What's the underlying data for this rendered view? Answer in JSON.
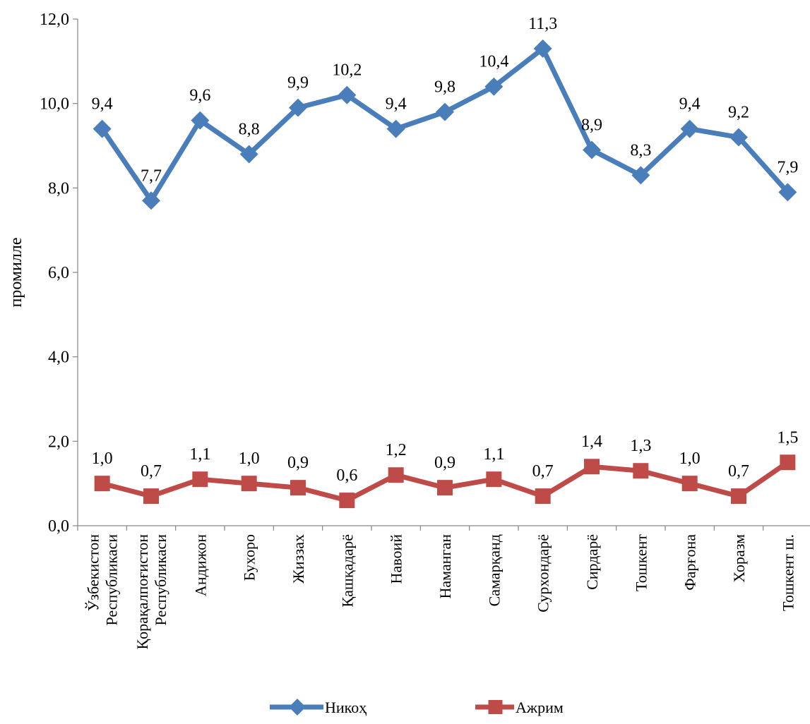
{
  "chart_data": {
    "type": "line",
    "title": "",
    "xlabel": "",
    "ylabel": "промилле",
    "ylim": [
      0,
      12
    ],
    "yticks": [
      0,
      2,
      4,
      6,
      8,
      10,
      12
    ],
    "ytick_labels": [
      "0,0",
      "2,0",
      "4,0",
      "6,0",
      "8,0",
      "10,0",
      "12,0"
    ],
    "grid": false,
    "legend_position": "bottom",
    "categories": [
      [
        "Ўзбекистон",
        "Республикаси"
      ],
      [
        "Қорақалпоғистон",
        "Республикаси"
      ],
      [
        "Андижон"
      ],
      [
        "Бухоро"
      ],
      [
        "Жиззах"
      ],
      [
        "Қашқадарё"
      ],
      [
        "Навоий"
      ],
      [
        "Наманган"
      ],
      [
        "Самарқанд"
      ],
      [
        "Сурхондарё"
      ],
      [
        "Сирдарё"
      ],
      [
        "Тошкент"
      ],
      [
        "Фарғона"
      ],
      [
        "Хоразм"
      ],
      [
        "Тошкент ш."
      ]
    ],
    "series": [
      {
        "name": "Никоҳ",
        "color": "#4a7ebb",
        "marker": "diamond",
        "values": [
          9.4,
          7.7,
          9.6,
          8.8,
          9.9,
          10.2,
          9.4,
          9.8,
          10.4,
          11.3,
          8.9,
          8.3,
          9.4,
          9.2,
          7.9
        ],
        "labels": [
          "9,4",
          "7,7",
          "9,6",
          "8,8",
          "9,9",
          "10,2",
          "9,4",
          "9,8",
          "10,4",
          "11,3",
          "8,9",
          "8,3",
          "9,4",
          "9,2",
          "7,9"
        ]
      },
      {
        "name": "Ажрим",
        "color": "#be4b48",
        "marker": "square",
        "values": [
          1.0,
          0.7,
          1.1,
          1.0,
          0.9,
          0.6,
          1.2,
          0.9,
          1.1,
          0.7,
          1.4,
          1.3,
          1.0,
          0.7,
          1.5
        ],
        "labels": [
          "1,0",
          "0,7",
          "1,1",
          "1,0",
          "0,9",
          "0,6",
          "1,2",
          "0,9",
          "1,1",
          "0,7",
          "1,4",
          "1,3",
          "1,0",
          "0,7",
          "1,5"
        ]
      }
    ]
  }
}
